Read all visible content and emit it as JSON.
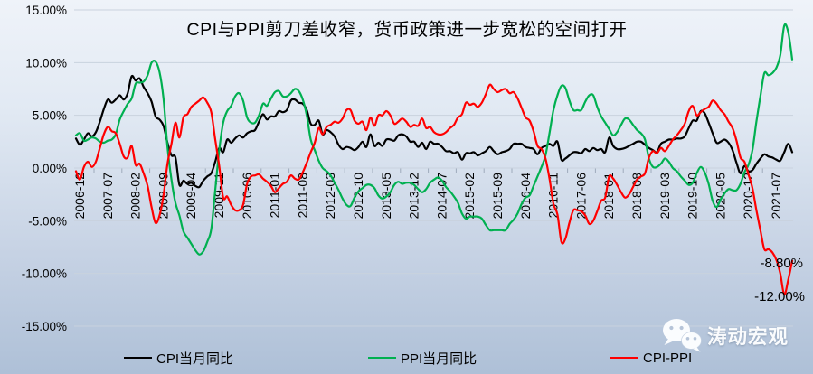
{
  "watermark": {
    "label": "涛动宏观"
  },
  "chart_data": {
    "type": "line",
    "title": "CPI与PPI剪刀差收窄，货币政策进一步宽松的空间打开",
    "x_start": "2006-12",
    "x_end": "2021-12",
    "frequency": "monthly",
    "n_points": 181,
    "ylim": [
      -15,
      15
    ],
    "y_tick_step": 5,
    "grid": true,
    "smoothed_lines": true,
    "legend_position": "bottom",
    "background": {
      "top": "#EFF3F9",
      "bottom": "#AEC0D7",
      "gridline": "#C9D2DE"
    },
    "y_tick_labels": [
      "15.00%",
      "10.00%",
      "5.00%",
      "0.00%",
      "-5.00%",
      "-10.00%",
      "-15.00%"
    ],
    "x_tick_labels": [
      "2006-12",
      "2007-07",
      "2008-02",
      "2008-09",
      "2009-04",
      "2009-11",
      "2010-06",
      "2011-01",
      "2011-08",
      "2012-03",
      "2012-10",
      "2013-05",
      "2013-12",
      "2014-07",
      "2015-02",
      "2015-09",
      "2016-04",
      "2016-11",
      "2017-06",
      "2018-01",
      "2018-08",
      "2019-03",
      "2019-10",
      "2020-05",
      "2020-12",
      "2021-07"
    ],
    "x_label_interval_months": 7,
    "series": [
      {
        "name": "CPI当月同比",
        "color": "#000000",
        "values": [
          2.8,
          2.2,
          2.7,
          3.3,
          3.0,
          3.4,
          4.4,
          5.6,
          6.5,
          6.2,
          6.5,
          6.9,
          6.5,
          7.1,
          8.7,
          8.3,
          8.5,
          7.7,
          7.1,
          6.3,
          4.9,
          4.6,
          4.0,
          2.4,
          1.2,
          1.0,
          -1.6,
          -1.2,
          -1.5,
          -1.4,
          -1.7,
          -1.8,
          -1.2,
          -0.8,
          -0.5,
          0.6,
          1.9,
          1.5,
          2.7,
          2.4,
          2.8,
          3.1,
          2.9,
          3.3,
          3.5,
          3.6,
          4.4,
          5.1,
          4.6,
          4.9,
          4.9,
          5.4,
          5.3,
          5.5,
          6.4,
          6.5,
          6.2,
          6.1,
          5.5,
          4.2,
          4.1,
          4.5,
          3.2,
          3.6,
          3.4,
          3.0,
          2.2,
          1.8,
          2.0,
          1.9,
          1.7,
          2.0,
          2.5,
          2.0,
          3.2,
          2.1,
          2.4,
          2.1,
          2.7,
          2.7,
          2.6,
          3.1,
          3.2,
          3.0,
          2.5,
          2.5,
          2.0,
          2.4,
          1.8,
          2.5,
          2.3,
          2.3,
          2.0,
          1.6,
          1.6,
          1.4,
          1.5,
          0.8,
          1.4,
          1.4,
          1.5,
          1.2,
          1.4,
          1.6,
          2.0,
          1.6,
          1.3,
          1.5,
          1.6,
          1.8,
          2.3,
          2.3,
          2.3,
          2.0,
          1.9,
          1.8,
          1.3,
          1.9,
          2.1,
          2.3,
          2.1,
          2.5,
          0.8,
          0.9,
          1.2,
          1.5,
          1.5,
          1.4,
          1.8,
          1.6,
          1.9,
          1.7,
          1.8,
          1.5,
          2.9,
          2.1,
          1.8,
          1.8,
          1.9,
          2.1,
          2.3,
          2.5,
          2.5,
          2.2,
          1.9,
          1.7,
          1.5,
          2.3,
          2.5,
          2.7,
          2.7,
          2.8,
          2.8,
          3.0,
          3.8,
          4.5,
          4.5,
          5.4,
          5.2,
          4.3,
          3.3,
          2.4,
          2.5,
          2.7,
          2.4,
          1.7,
          0.5,
          -0.5,
          0.2,
          -0.3,
          -0.2,
          0.4,
          0.9,
          1.3,
          1.1,
          1.0,
          0.8,
          0.7,
          1.5,
          2.3,
          1.5
        ]
      },
      {
        "name": "PPI当月同比",
        "color": "#00B050",
        "values": [
          3.1,
          3.3,
          2.6,
          2.7,
          2.9,
          2.8,
          2.5,
          2.4,
          2.6,
          2.7,
          3.2,
          4.6,
          5.4,
          6.1,
          6.6,
          8.0,
          8.1,
          8.2,
          8.8,
          10.0,
          10.1,
          9.1,
          6.6,
          2.0,
          -1.1,
          -3.3,
          -4.5,
          -6.0,
          -6.6,
          -7.2,
          -7.8,
          -8.2,
          -7.9,
          -7.0,
          -5.8,
          -2.1,
          1.7,
          4.3,
          5.4,
          5.9,
          6.8,
          7.1,
          6.4,
          4.8,
          4.3,
          4.3,
          5.0,
          6.1,
          5.9,
          6.6,
          7.2,
          7.3,
          6.8,
          6.8,
          7.1,
          7.5,
          7.3,
          6.5,
          5.0,
          2.7,
          1.7,
          0.7,
          0.0,
          -0.3,
          -0.7,
          -1.4,
          -2.1,
          -2.9,
          -3.5,
          -3.6,
          -2.8,
          -2.2,
          -1.9,
          -1.6,
          -1.6,
          -1.9,
          -2.6,
          -2.9,
          -2.7,
          -2.3,
          -1.6,
          -1.3,
          -1.5,
          -1.4,
          -1.4,
          -1.6,
          -2.0,
          -2.3,
          -2.0,
          -1.4,
          -1.1,
          -0.9,
          -1.2,
          -1.8,
          -2.2,
          -2.7,
          -3.3,
          -4.3,
          -4.8,
          -4.6,
          -4.6,
          -4.6,
          -4.8,
          -5.4,
          -5.9,
          -5.9,
          -5.9,
          -5.9,
          -5.9,
          -5.3,
          -4.9,
          -4.3,
          -3.4,
          -2.8,
          -2.6,
          -1.7,
          -0.8,
          0.1,
          1.2,
          3.3,
          5.5,
          6.9,
          7.8,
          7.6,
          6.4,
          5.5,
          5.5,
          5.5,
          6.3,
          6.9,
          6.9,
          5.8,
          4.9,
          4.3,
          3.7,
          3.1,
          3.4,
          4.1,
          4.7,
          4.6,
          4.1,
          3.6,
          3.3,
          2.7,
          0.9,
          0.1,
          0.1,
          0.4,
          0.9,
          0.6,
          0.0,
          -0.3,
          -0.8,
          -1.2,
          -1.6,
          -1.4,
          -0.5,
          0.1,
          -0.4,
          -1.5,
          -3.1,
          -3.7,
          -3.0,
          -2.4,
          -2.0,
          -2.1,
          -2.1,
          -1.5,
          -0.4,
          0.3,
          1.7,
          4.4,
          6.8,
          9.0,
          8.8,
          9.0,
          9.5,
          10.7,
          13.5,
          12.9,
          10.3
        ]
      },
      {
        "name": "CPI-PPI",
        "color": "#FF0000",
        "values": [
          -0.3,
          -1.1,
          0.1,
          0.6,
          0.1,
          0.6,
          1.9,
          3.2,
          3.9,
          3.5,
          3.3,
          2.3,
          1.1,
          1.0,
          2.1,
          0.3,
          0.4,
          -0.5,
          -1.7,
          -3.7,
          -5.2,
          -4.5,
          -2.6,
          0.4,
          2.3,
          4.3,
          2.9,
          4.8,
          5.1,
          5.8,
          6.1,
          6.4,
          6.7,
          6.2,
          5.3,
          2.7,
          0.2,
          -2.8,
          -2.7,
          -3.5,
          -4.0,
          -4.0,
          -3.5,
          -1.5,
          -0.8,
          -0.7,
          -0.6,
          -1.0,
          -1.3,
          -1.7,
          -2.3,
          -1.9,
          -1.5,
          -1.3,
          -0.7,
          -1.0,
          -1.1,
          -0.4,
          0.5,
          1.5,
          2.4,
          3.8,
          3.2,
          3.9,
          4.1,
          4.4,
          4.3,
          4.7,
          5.5,
          5.5,
          4.5,
          4.2,
          4.4,
          3.6,
          4.8,
          4.0,
          5.0,
          5.0,
          5.4,
          5.0,
          4.2,
          4.4,
          4.7,
          4.4,
          3.9,
          4.1,
          4.0,
          4.7,
          3.8,
          3.9,
          3.4,
          3.2,
          3.2,
          3.4,
          3.8,
          4.1,
          4.8,
          5.1,
          6.2,
          6.0,
          6.1,
          5.8,
          6.2,
          7.0,
          7.9,
          7.5,
          7.2,
          7.4,
          7.5,
          7.1,
          7.2,
          6.6,
          5.7,
          4.8,
          4.5,
          3.5,
          2.1,
          1.8,
          0.9,
          -1.0,
          -3.4,
          -4.4,
          -7.0,
          -6.7,
          -5.2,
          -4.0,
          -4.0,
          -4.1,
          -4.5,
          -5.3,
          -5.0,
          -4.1,
          -3.1,
          -2.8,
          -0.8,
          -1.0,
          -1.6,
          -2.3,
          -2.8,
          -2.5,
          -1.8,
          -1.1,
          -0.8,
          -0.5,
          1.0,
          1.6,
          1.4,
          1.9,
          1.6,
          2.1,
          2.7,
          3.1,
          3.6,
          4.2,
          5.4,
          5.9,
          5.0,
          5.3,
          5.6,
          5.8,
          6.4,
          6.1,
          5.5,
          5.1,
          4.4,
          3.8,
          2.6,
          1.0,
          0.6,
          -0.6,
          -1.9,
          -4.0,
          -5.9,
          -7.7,
          -7.7,
          -8.0,
          -8.7,
          -10.0,
          -12.0,
          -10.6,
          -8.8
        ]
      }
    ],
    "annotations": [
      {
        "text": "-8.80%",
        "series": "CPI-PPI",
        "month": "2021-12",
        "value": -8.8
      },
      {
        "text": "-12.00%",
        "series": "CPI-PPI",
        "month": "2021-10",
        "value": -12.0
      }
    ]
  }
}
